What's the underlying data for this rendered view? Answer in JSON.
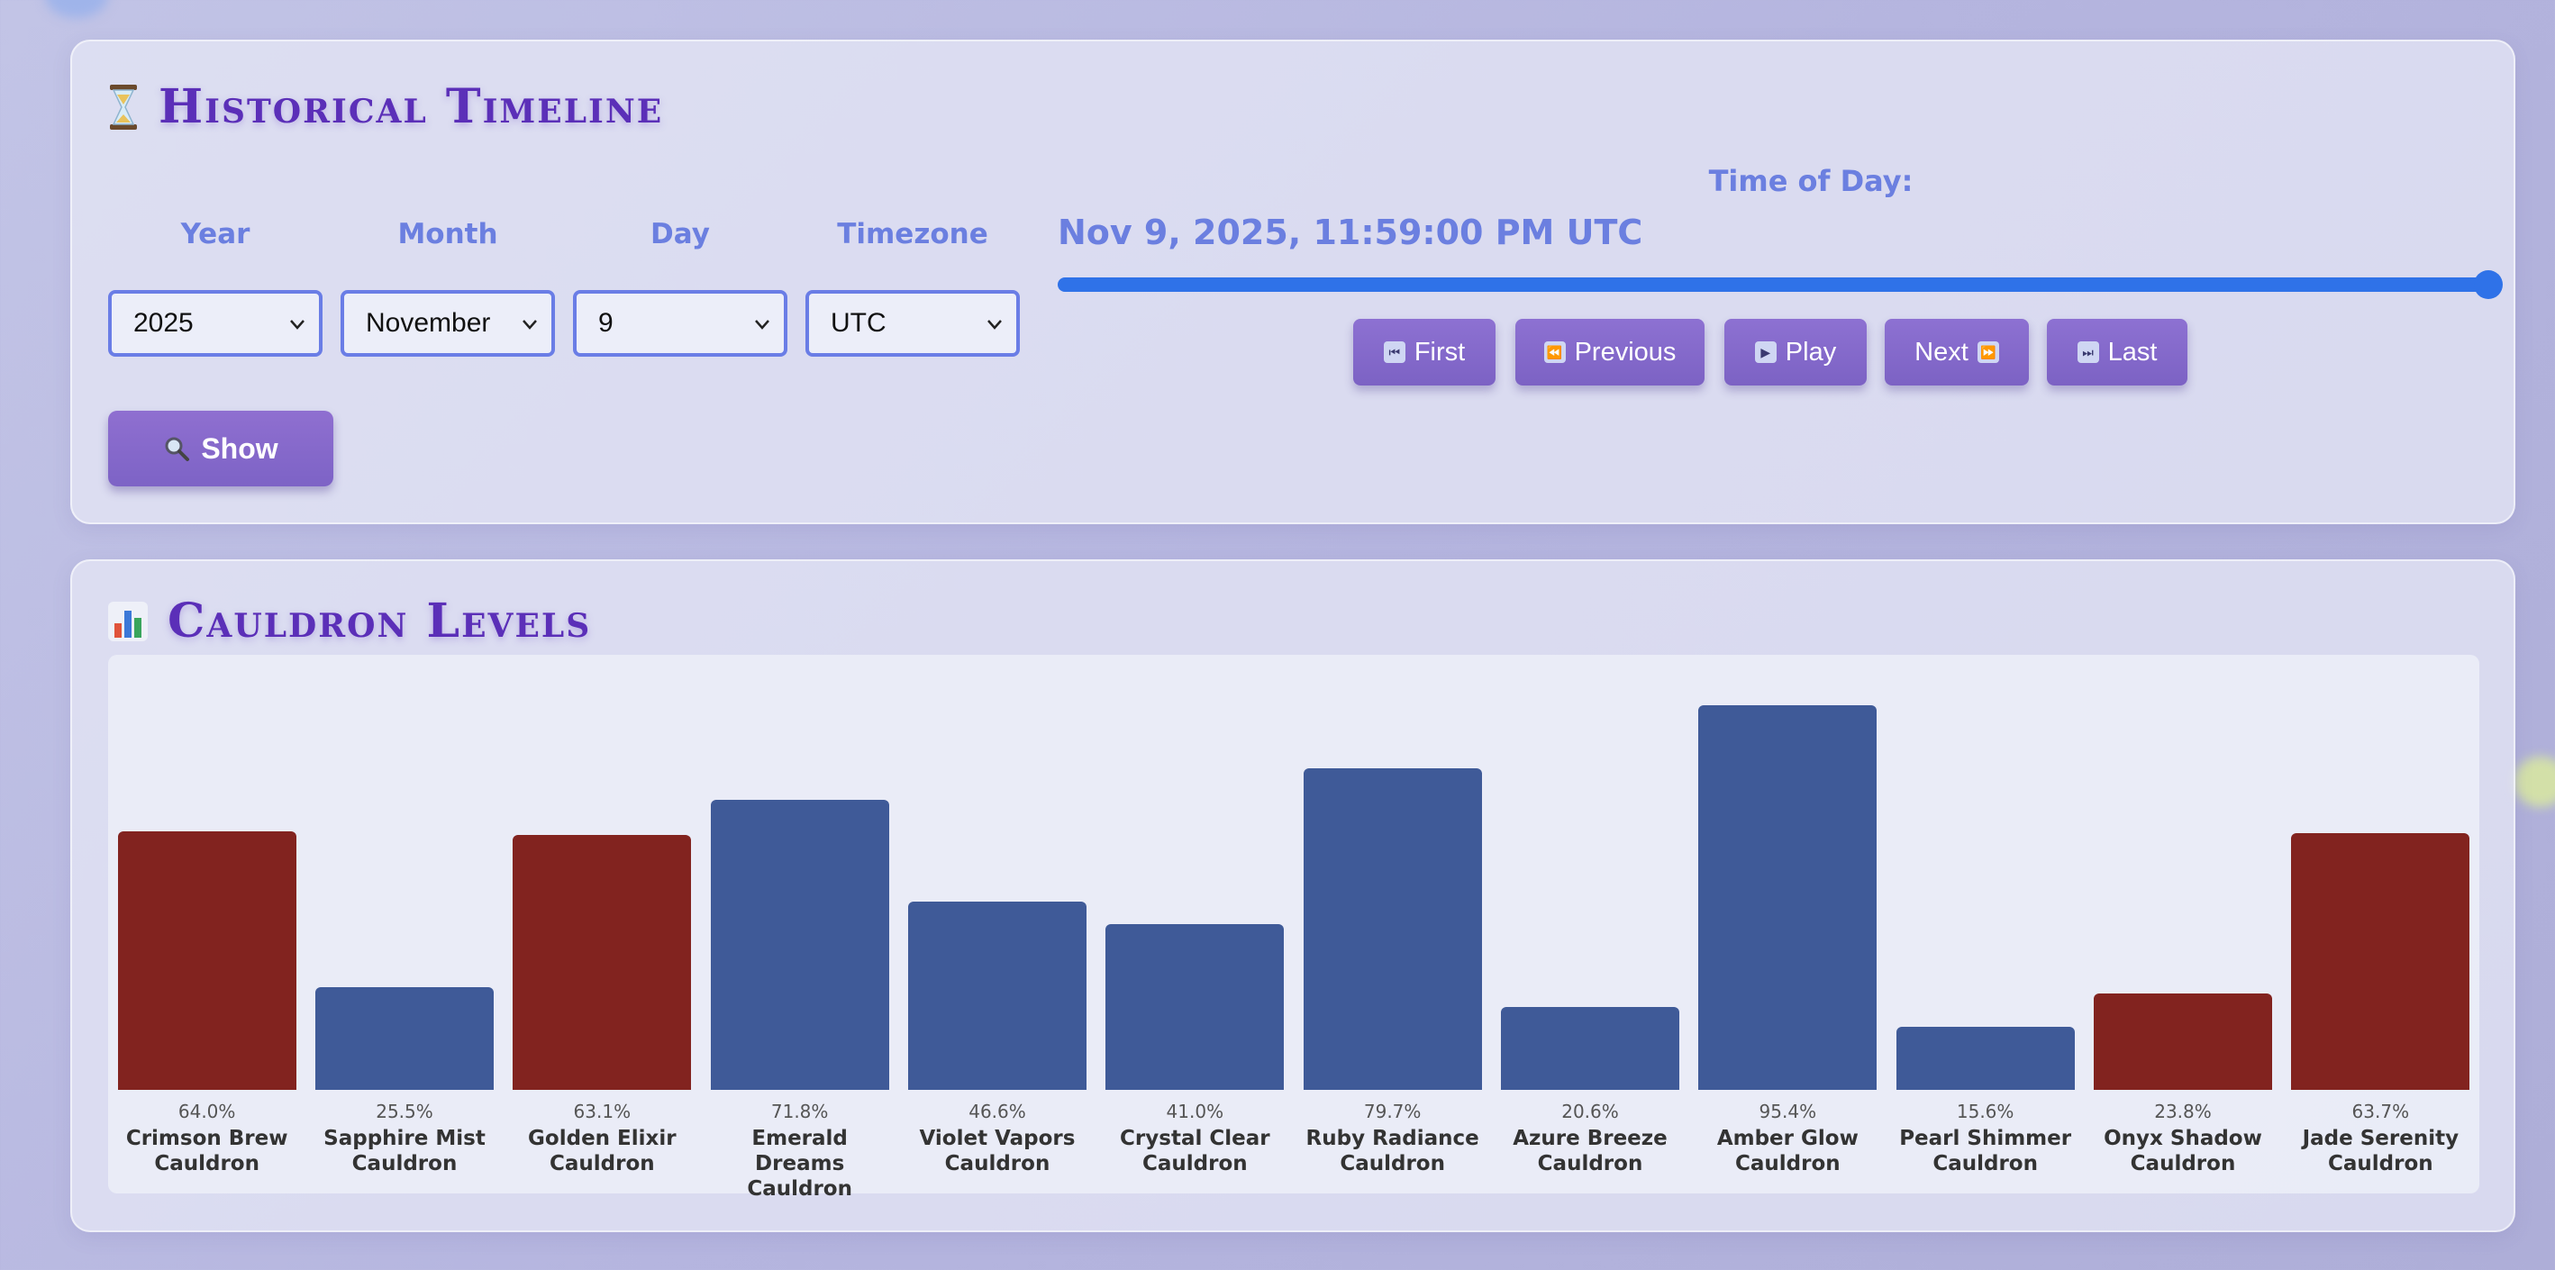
{
  "timeline": {
    "title": "Historical Timeline",
    "icon": "hourglass-icon",
    "fields": [
      {
        "label": "Year",
        "value": "2025"
      },
      {
        "label": "Month",
        "value": "November"
      },
      {
        "label": "Day",
        "value": "9"
      },
      {
        "label": "Timezone",
        "value": "UTC"
      }
    ],
    "show_button": "Show",
    "time_of_day_label": "Time of Day:",
    "current_datetime": "Nov 9, 2025, 11:59:00 PM UTC",
    "slider_fraction": 1.0,
    "nav_buttons": [
      {
        "label": "First",
        "icon": "skip-back-icon"
      },
      {
        "label": "Previous",
        "icon": "rewind-icon"
      },
      {
        "label": "Play",
        "icon": "play-icon"
      },
      {
        "label": "Next",
        "icon": "fast-forward-icon"
      },
      {
        "label": "Last",
        "icon": "skip-forward-icon"
      }
    ]
  },
  "levels": {
    "title": "Cauldron Levels",
    "icon": "bar-chart-icon"
  },
  "colors": {
    "title": "#5b2fb8",
    "label": "#6b7fe0",
    "accent_button": "#8a6cd0",
    "slider": "#2f72e8",
    "bar_blue": "#3f5a98",
    "bar_red": "#82231f"
  },
  "chart_data": {
    "type": "bar",
    "ylim": [
      0,
      100
    ],
    "categories": [
      "Crimson Brew Cauldron",
      "Sapphire Mist Cauldron",
      "Golden Elixir Cauldron",
      "Emerald Dreams Cauldron",
      "Violet Vapors Cauldron",
      "Crystal Clear Cauldron",
      "Ruby Radiance Cauldron",
      "Azure Breeze Cauldron",
      "Amber Glow Cauldron",
      "Pearl Shimmer Cauldron",
      "Onyx Shadow Cauldron",
      "Jade Serenity Cauldron"
    ],
    "values": [
      64.0,
      25.5,
      63.1,
      71.8,
      46.6,
      41.0,
      79.7,
      20.6,
      95.4,
      15.6,
      23.8,
      63.7
    ],
    "value_labels": [
      "64.0%",
      "25.5%",
      "63.1%",
      "71.8%",
      "46.6%",
      "41.0%",
      "79.7%",
      "20.6%",
      "95.4%",
      "15.6%",
      "23.8%",
      "63.7%"
    ],
    "bar_colors": [
      "#82231f",
      "#3f5a98",
      "#82231f",
      "#3f5a98",
      "#3f5a98",
      "#3f5a98",
      "#3f5a98",
      "#3f5a98",
      "#3f5a98",
      "#3f5a98",
      "#82231f",
      "#82231f"
    ],
    "category_lines": [
      [
        "Crimson Brew",
        "Cauldron"
      ],
      [
        "Sapphire Mist",
        "Cauldron"
      ],
      [
        "Golden Elixir",
        "Cauldron"
      ],
      [
        "Emerald Dreams",
        "Cauldron"
      ],
      [
        "Violet Vapors",
        "Cauldron"
      ],
      [
        "Crystal Clear",
        "Cauldron"
      ],
      [
        "Ruby Radiance",
        "Cauldron"
      ],
      [
        "Azure Breeze",
        "Cauldron"
      ],
      [
        "Amber Glow",
        "Cauldron"
      ],
      [
        "Pearl Shimmer",
        "Cauldron"
      ],
      [
        "Onyx Shadow",
        "Cauldron"
      ],
      [
        "Jade Serenity",
        "Cauldron"
      ]
    ]
  }
}
